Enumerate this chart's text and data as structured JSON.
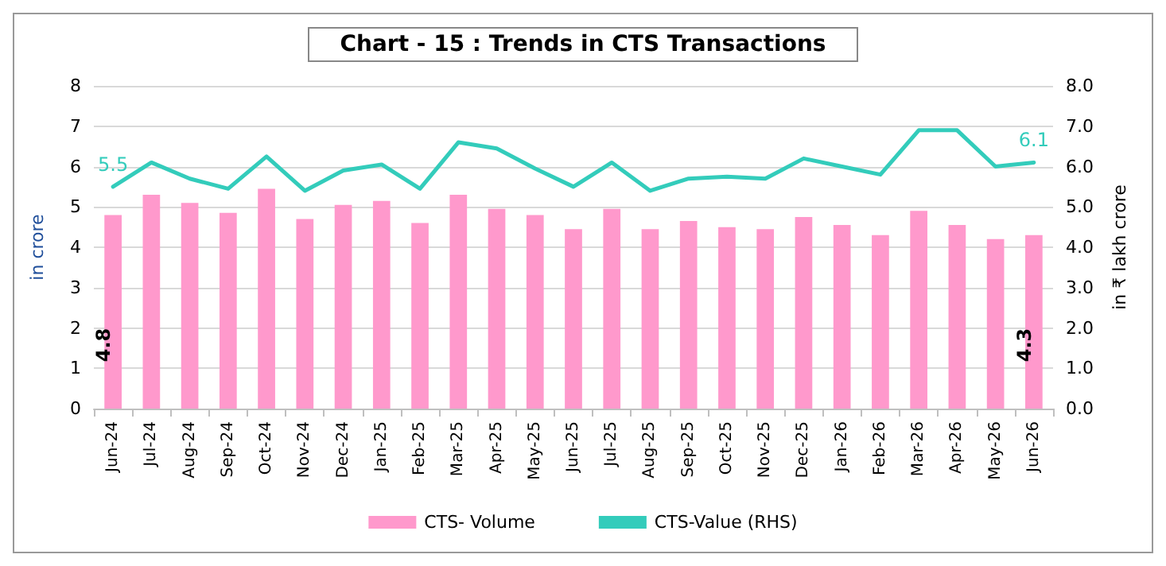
{
  "chart_data": {
    "type": "bar",
    "title": "Chart - 15 : Trends in CTS Transactions",
    "ylabel": "in crore",
    "y2label": "in ₹ lakh crore",
    "categories": [
      "Jun-24",
      "Jul-24",
      "Aug-24",
      "Sep-24",
      "Oct-24",
      "Nov-24",
      "Dec-24",
      "Jan-25",
      "Feb-25",
      "Mar-25",
      "Apr-25",
      "May-25",
      "Jun-25",
      "Jul-25",
      "Aug-25",
      "Sep-25",
      "Oct-25",
      "Nov-25",
      "Dec-25",
      "Jan-26",
      "Feb-26",
      "Mar-26",
      "Apr-26",
      "May-26",
      "Jun-26"
    ],
    "series": [
      {
        "name": "CTS- Volume",
        "color": "#ff99cc",
        "values": [
          4.8,
          5.3,
          5.1,
          4.85,
          5.45,
          4.7,
          5.05,
          5.15,
          4.6,
          5.3,
          4.95,
          4.8,
          4.45,
          4.95,
          4.45,
          4.65,
          4.5,
          4.45,
          4.75,
          4.55,
          4.3,
          4.9,
          4.55,
          4.2,
          4.3
        ],
        "value_labels": [
          "4.8",
          null,
          null,
          null,
          null,
          null,
          null,
          null,
          null,
          null,
          null,
          null,
          null,
          null,
          null,
          null,
          null,
          null,
          null,
          null,
          null,
          null,
          null,
          null,
          "4.3"
        ]
      },
      {
        "name": "CTS-Value (RHS)",
        "type": "line",
        "axis": "y2",
        "color": "#33ccbb",
        "values": [
          5.5,
          6.1,
          5.7,
          5.45,
          6.25,
          5.4,
          5.9,
          6.05,
          5.45,
          6.6,
          6.45,
          5.95,
          5.5,
          6.1,
          5.4,
          5.7,
          5.75,
          5.7,
          6.2,
          6.0,
          5.8,
          6.9,
          6.9,
          6.0,
          6.1
        ],
        "value_labels": [
          "5.5",
          null,
          null,
          null,
          null,
          null,
          null,
          null,
          null,
          null,
          null,
          null,
          null,
          null,
          null,
          null,
          null,
          null,
          null,
          null,
          null,
          null,
          null,
          null,
          "6.1"
        ]
      }
    ],
    "ylim": [
      0,
      8
    ],
    "yticks": [
      0,
      1,
      2,
      3,
      4,
      5,
      6,
      7,
      8
    ],
    "y2lim": [
      0,
      8
    ],
    "y2ticks": [
      {
        "value": 0,
        "label": "0.0"
      },
      {
        "value": 1,
        "label": "1.0"
      },
      {
        "value": 2,
        "label": "2.0"
      },
      {
        "value": 3,
        "label": "3.0"
      },
      {
        "value": 4,
        "label": "4.0"
      },
      {
        "value": 5,
        "label": "5.0"
      },
      {
        "value": 6,
        "label": "6.0"
      },
      {
        "value": 7,
        "label": "7.0"
      },
      {
        "value": 8,
        "label": "8.0"
      }
    ],
    "grid": "y",
    "legend": "bottom",
    "marker": "none",
    "line_style": "solid"
  }
}
